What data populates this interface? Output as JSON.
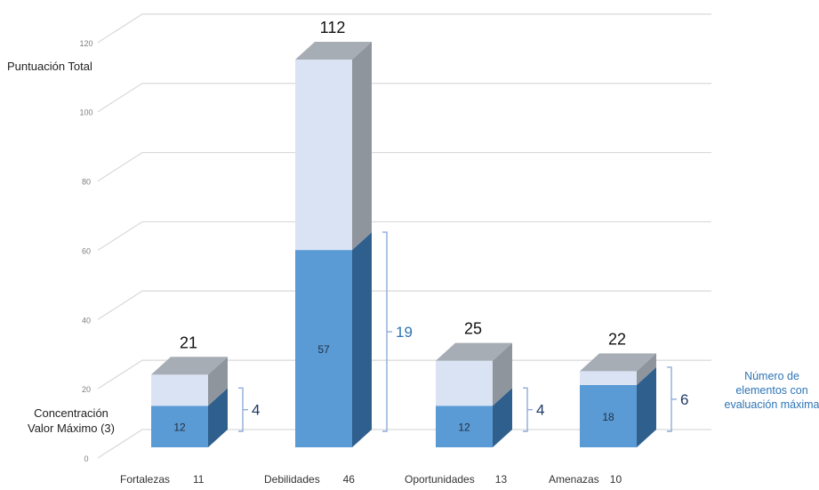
{
  "chart_data": {
    "type": "bar",
    "stacked": true,
    "style": "3d",
    "ylabel": "Puntuación Total",
    "ylim": [
      0,
      120
    ],
    "yticks": [
      0,
      20,
      40,
      60,
      80,
      100,
      120
    ],
    "grid": true,
    "categories": [
      "Fortalezas",
      "Debilidades",
      "Oportunidades",
      "Amenazas"
    ],
    "category_counts": [
      "11",
      "46",
      "13",
      "10"
    ],
    "series": [
      {
        "name": "Concentración Valor Máximo (3)",
        "values": [
          12,
          57,
          12,
          18
        ]
      },
      {
        "values": [
          9,
          55,
          13,
          4
        ]
      }
    ],
    "totals": [
      "21",
      "112",
      "25",
      "22"
    ],
    "max_count_labels": [
      "4",
      "19",
      "4",
      "6"
    ],
    "annotation": "Número de elementos con evaluación máxima",
    "colors": {
      "bottom_front": "#5b9bd5",
      "bottom_side": "#2f5f8d",
      "top_front": "#dae3f3",
      "top_side": "#8f959d",
      "top_cap": "#a7adb5",
      "grid": "#d9d9d9",
      "bracket": "#8faadc",
      "annotation_text": "#2e75b6",
      "count_text": "#1f3864"
    }
  }
}
